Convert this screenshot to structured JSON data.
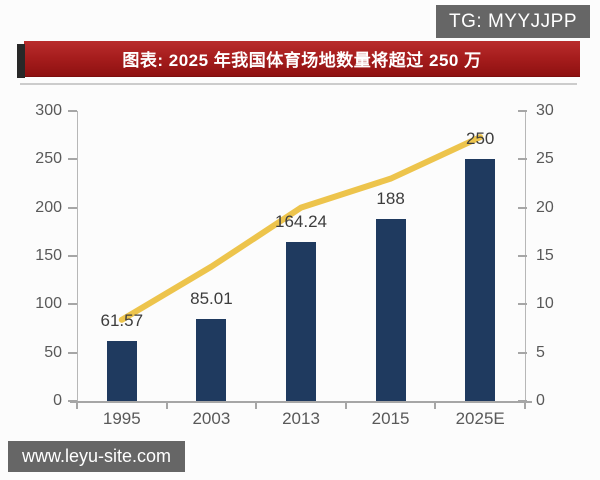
{
  "watermarks": {
    "top_right": "TG: MYYJJPP",
    "bottom_left": "www.leyu-site.com"
  },
  "colors": {
    "page_bg": "#fcfcfc",
    "title_bar_top": "#b92c2c",
    "title_bar_mid": "#a31b1b",
    "title_bar_bottom": "#8e1111",
    "title_text": "#ffffff",
    "title_left_cap": "#282828",
    "title_shadow_line": "#cccccc",
    "bar": "#1f3a5f",
    "line": "#edc44c",
    "axis": "#b7b7b7",
    "axis_dark": "#a6a6a6",
    "tick_label": "#595959",
    "data_label": "#3d3d3d",
    "watermark_bg": "#666666",
    "watermark_text": "#ffffff"
  },
  "chart_data": {
    "type": "bar",
    "title": "图表: 2025 年我国体育场地数量将超过 250 万",
    "categories": [
      "1995",
      "2003",
      "2013",
      "2015",
      "2025E"
    ],
    "bar_series": {
      "axis": "left",
      "values": [
        61.57,
        85.01,
        164.24,
        188,
        250
      ],
      "labels": [
        "61.57",
        "85.01",
        "164.24",
        "188",
        "250"
      ]
    },
    "line_series": {
      "axis": "right",
      "estimated_from_pixels": true,
      "values": [
        8.4,
        13.9,
        20.0,
        23.0,
        27.3
      ]
    },
    "left_axis": {
      "min": 0,
      "max": 300,
      "step": 50,
      "tick_labels": [
        "0",
        "50",
        "100",
        "150",
        "200",
        "250",
        "300"
      ]
    },
    "right_axis": {
      "min": 0,
      "max": 30,
      "step": 5,
      "tick_labels": [
        "0",
        "5",
        "10",
        "15",
        "20",
        "25",
        "30"
      ]
    },
    "grid": false,
    "legend": "none"
  }
}
